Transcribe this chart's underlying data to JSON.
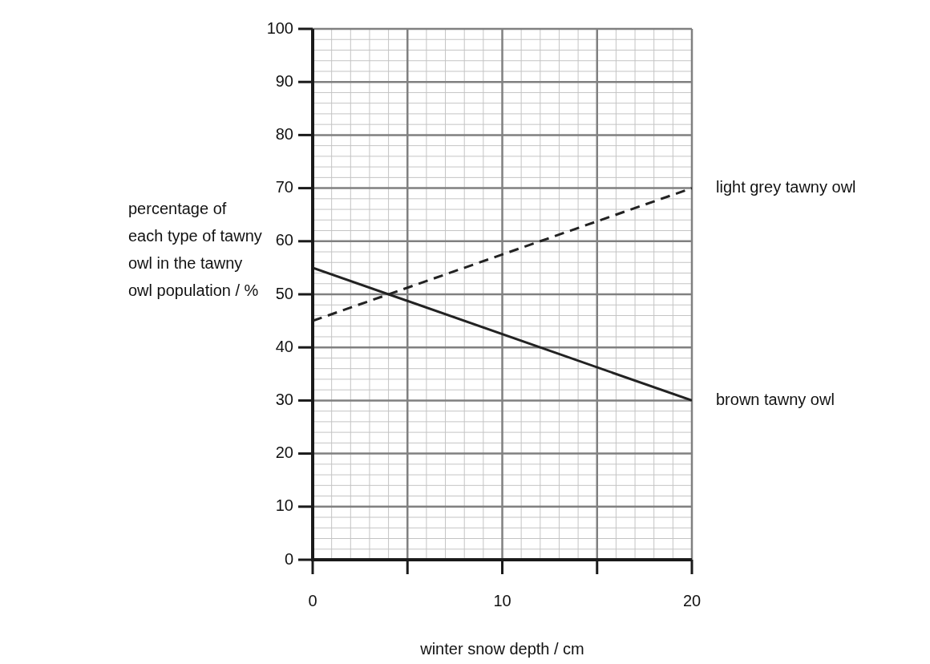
{
  "chart_data": {
    "type": "line",
    "xlabel": "winter snow depth / cm",
    "ylabel": "percentage of each type of tawny owl in the tawny owl population / %",
    "x": [
      0,
      20
    ],
    "series": [
      {
        "name": "light grey tawny owl",
        "color": "#222222",
        "line_style": "dashed",
        "values": [
          45,
          70
        ]
      },
      {
        "name": "brown tawny owl",
        "color": "#222222",
        "line_style": "solid",
        "values": [
          55,
          30
        ]
      }
    ],
    "xlim": [
      0,
      20
    ],
    "xticks": [
      0,
      {
        "value": 5,
        "label": null
      },
      10,
      {
        "value": 15,
        "label": null
      },
      20
    ],
    "ylim": [
      0,
      100
    ],
    "yticks": [
      0,
      10,
      20,
      30,
      40,
      50,
      60,
      70,
      80,
      90,
      100
    ],
    "grid": true,
    "legend": false,
    "marker": "none"
  }
}
